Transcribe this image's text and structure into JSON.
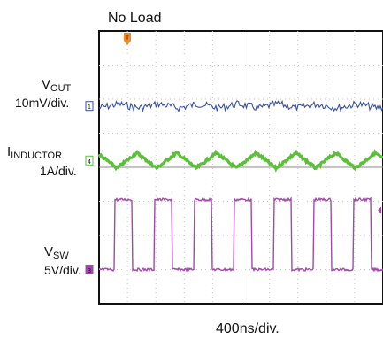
{
  "chart_data": {
    "type": "line",
    "title": "No Load",
    "xlabel": "400ns/div.",
    "time_per_div_ns": 400,
    "divisions_x": 10,
    "divisions_y": 8,
    "switching_period_ns": 560,
    "trigger_marker": "T",
    "series": [
      {
        "name": "VOUT",
        "name_main": "V",
        "name_sub": "OUT",
        "scale": "10mV/div.",
        "channel_tag": "1",
        "color": "#3a4fa0",
        "ground_div": 5.8,
        "waveform": "noise",
        "amplitude_div": 0.15
      },
      {
        "name": "IINDUCTOR",
        "name_main": "I",
        "name_sub": "INDUCTOR",
        "scale": "1A/div.",
        "channel_tag": "4",
        "color": "#5cbf3a",
        "ground_div": 4.2,
        "waveform": "triangle",
        "amplitude_div": 0.45
      },
      {
        "name": "VSW",
        "name_main": "V",
        "name_sub": "SW",
        "scale": "5V/div.",
        "channel_tag": "3",
        "color": "#a04aa8",
        "ground_div": 1.0,
        "waveform": "square",
        "high_div": 2.05,
        "low_div": 0.0
      }
    ],
    "grid": true
  }
}
